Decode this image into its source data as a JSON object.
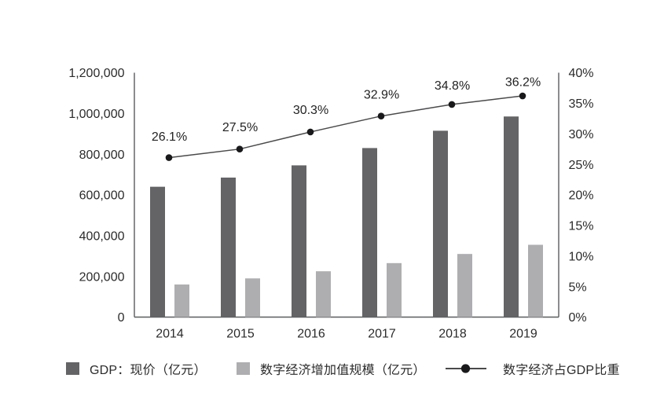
{
  "chart_data": {
    "type": "combo-bar-line",
    "categories": [
      "2014",
      "2015",
      "2016",
      "2017",
      "2018",
      "2019"
    ],
    "series": [
      {
        "name": "GDP：现价（亿元）",
        "type": "bar",
        "axis": "left",
        "values": [
          640000,
          685000,
          745000,
          830000,
          915000,
          985000
        ]
      },
      {
        "name": "数字经济增加值规模（亿元）",
        "type": "bar",
        "axis": "left",
        "values": [
          160000,
          190000,
          225000,
          265000,
          310000,
          355000
        ]
      },
      {
        "name": "数字经济占GDP比重",
        "type": "line",
        "axis": "right",
        "values": [
          26.1,
          27.5,
          30.3,
          32.9,
          34.8,
          36.2
        ],
        "labels": [
          "26.1%",
          "27.5%",
          "30.3%",
          "32.9%",
          "34.8%",
          "36.2%"
        ]
      }
    ],
    "left_axis": {
      "min": 0,
      "max": 1200000,
      "step": 200000,
      "tick_labels": [
        "0",
        "200,000",
        "400,000",
        "600,000",
        "800,000",
        "1,000,000",
        "1,200,000"
      ]
    },
    "right_axis": {
      "min": 0,
      "max": 40,
      "step": 5,
      "tick_labels": [
        "0%",
        "5%",
        "10%",
        "15%",
        "20%",
        "25%",
        "30%",
        "35%",
        "40%"
      ]
    },
    "grid": false,
    "legend_position": "bottom",
    "colors": {
      "gdp_bar": "#646467",
      "digital_bar": "#aeaeb1",
      "line": "#4a4a4c",
      "dot": "#19191b",
      "axis": "#5a5b5d",
      "text": "#2b2b2c",
      "data_label": "#232324",
      "background": "#ffffff"
    }
  },
  "legend": {
    "items": [
      {
        "symbol": "gdp-bar-square",
        "label": "GDP：现价（亿元）"
      },
      {
        "symbol": "digital-economy-bar-square",
        "label": "数字经济增加值规模（亿元）"
      },
      {
        "symbol": "ratio-line-dot",
        "label": "数字经济占GDP比重"
      }
    ]
  }
}
